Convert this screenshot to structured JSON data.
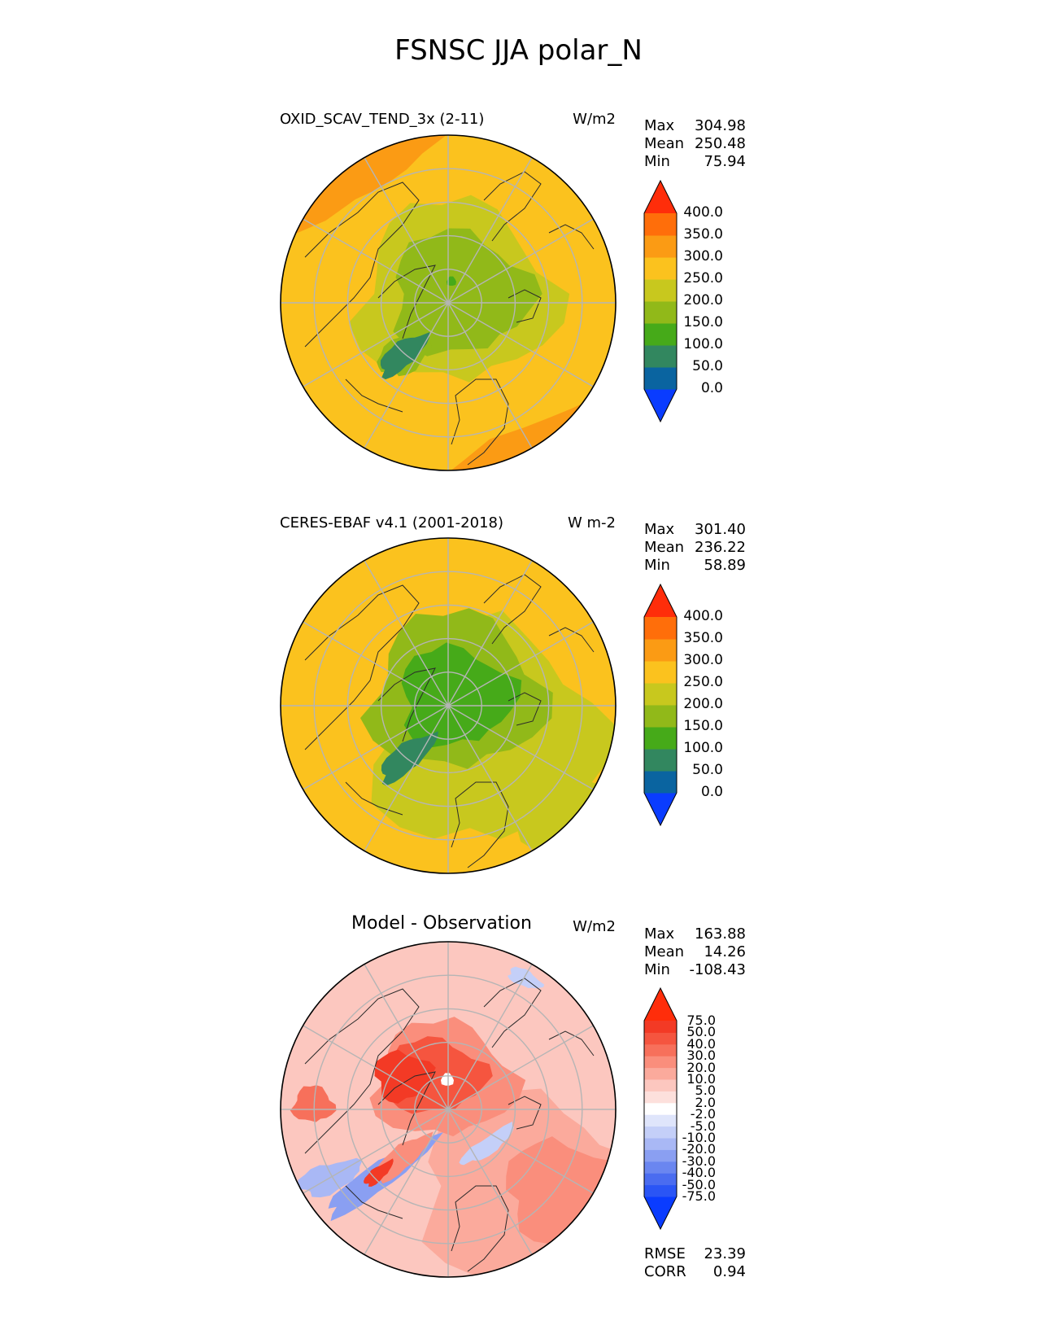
{
  "title": "FSNSC JJA polar_N",
  "chart_data": [
    {
      "type": "heatmap",
      "projection": "north polar stereographic",
      "title": "OXID_SCAV_TEND_3x (2-11)",
      "units": "W/m2",
      "stats": {
        "Max": "304.98",
        "Mean": "250.48",
        "Min": "75.94"
      },
      "colorbar": {
        "levels": [
          "0.0",
          "50.0",
          "100.0",
          "150.0",
          "200.0",
          "250.0",
          "300.0",
          "350.0",
          "400.0"
        ],
        "colors": [
          "#0a3cff",
          "#0a64a0",
          "#32875f",
          "#46aa19",
          "#91b919",
          "#c8c81e",
          "#fbc21e",
          "#fb9b14",
          "#ff6e0a",
          "#ff2d0a"
        ]
      }
    },
    {
      "type": "heatmap",
      "projection": "north polar stereographic",
      "title": "CERES-EBAF v4.1 (2001-2018)",
      "units": "W m-2",
      "stats": {
        "Max": "301.40",
        "Mean": "236.22",
        "Min": "58.89"
      },
      "colorbar": {
        "levels": [
          "0.0",
          "50.0",
          "100.0",
          "150.0",
          "200.0",
          "250.0",
          "300.0",
          "350.0",
          "400.0"
        ],
        "colors": [
          "#0a3cff",
          "#0a64a0",
          "#32875f",
          "#46aa19",
          "#91b919",
          "#c8c81e",
          "#fbc21e",
          "#fb9b14",
          "#ff6e0a",
          "#ff2d0a"
        ]
      }
    },
    {
      "type": "heatmap",
      "projection": "north polar stereographic",
      "title": "Model - Observation",
      "units": "W/m2",
      "stats": {
        "Max": "163.88",
        "Mean": "14.26",
        "Min": "-108.43"
      },
      "metrics": {
        "RMSE": "23.39",
        "CORR": "0.94"
      },
      "colorbar": {
        "levels": [
          "-75.0",
          "-50.0",
          "-40.0",
          "-30.0",
          "-20.0",
          "-10.0",
          "-5.0",
          "-2.0",
          "2.0",
          "5.0",
          "10.0",
          "20.0",
          "30.0",
          "40.0",
          "50.0",
          "75.0"
        ],
        "colors": [
          "#0a3cff",
          "#2a55f5",
          "#4a6cf0",
          "#6a86f0",
          "#8a9ff2",
          "#a9b8f5",
          "#c4cff8",
          "#dfe5fb",
          "#ffffff",
          "#fde0dc",
          "#fcc7bf",
          "#fbaa9c",
          "#fa8e7c",
          "#f7705b",
          "#f5553f",
          "#f33a25",
          "#ff2d0a"
        ]
      }
    }
  ]
}
